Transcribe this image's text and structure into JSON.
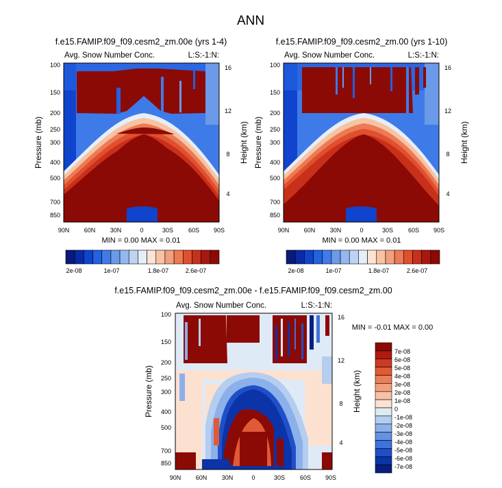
{
  "page_title": "ANN",
  "chart_data": [
    {
      "type": "heatmap",
      "title": "f.e15.FAMIP.f09_f09.cesm2_zm.00e (yrs 1-4)",
      "left_string": "Avg. Snow Number Conc.",
      "right_string": "L:S:-1:N:",
      "ylabel": "Pressure (mb)",
      "ylabel_right": "Height (km)",
      "x_tick_labels": [
        "90N",
        "60N",
        "30N",
        "0",
        "30S",
        "60S",
        "90S"
      ],
      "y_tick_labels": [
        "100",
        "150",
        "200",
        "250",
        "300",
        "400",
        "500",
        "700",
        "850"
      ],
      "y_right_tick_labels": [
        "16",
        "12",
        "8",
        "4"
      ],
      "min_max_text": "MIN =  0.00   MAX =  0.01",
      "colorbar_labels": [
        "2e-08",
        "1e-07",
        "1.8e-07",
        "2.6e-07"
      ],
      "colors": [
        "#0a1a7a",
        "#0a2ba6",
        "#1044cc",
        "#2460e0",
        "#3f7be8",
        "#6a9ae8",
        "#93b8ee",
        "#bcd4f3",
        "#e6eef8",
        "#fce3d3",
        "#f8c3a3",
        "#f2a07a",
        "#ec7a55",
        "#e0502f",
        "#c9301a",
        "#a7190e",
        "#8c0a05"
      ]
    },
    {
      "type": "heatmap",
      "title": "f.e15.FAMIP.f09_f09.cesm2_zm.00 (yrs 1-10)",
      "left_string": "Avg. Snow Number Conc.",
      "right_string": "L:S:-1:N:",
      "ylabel": "Pressure (mb)",
      "ylabel_right": "Height (km)",
      "x_tick_labels": [
        "90N",
        "60N",
        "30N",
        "0",
        "30S",
        "60S",
        "90S"
      ],
      "y_tick_labels": [
        "100",
        "150",
        "200",
        "250",
        "300",
        "400",
        "500",
        "700",
        "850"
      ],
      "y_right_tick_labels": [
        "16",
        "12",
        "8",
        "4"
      ],
      "min_max_text": "MIN =  0.00   MAX =  0.01",
      "colorbar_labels": [
        "2e-08",
        "1e-07",
        "1.8e-07",
        "2.6e-07"
      ]
    },
    {
      "type": "heatmap",
      "title": "f.e15.FAMIP.f09_f09.cesm2_zm.00e - f.e15.FAMIP.f09_f09.cesm2_zm.00",
      "left_string": "Avg. Snow Number Conc.",
      "right_string": "L:S:-1:N:",
      "ylabel": "Pressure (mb)",
      "ylabel_right": "Height (km)",
      "x_tick_labels": [
        "90N",
        "60N",
        "30N",
        "0",
        "30S",
        "60S",
        "90S"
      ],
      "y_tick_labels": [
        "100",
        "150",
        "200",
        "250",
        "300",
        "400",
        "500",
        "700",
        "850"
      ],
      "y_right_tick_labels": [
        "16",
        "12",
        "8",
        "4"
      ],
      "min_max_text": "MIN = -0.01   MAX =  0.00",
      "colorbar_labels": [
        "7e-08",
        "6e-08",
        "5e-08",
        "4e-08",
        "3e-08",
        "2e-08",
        "1e-08",
        "0",
        "-1e-08",
        "-2e-08",
        "-3e-08",
        "-4e-08",
        "-5e-08",
        "-6e-08",
        "-7e-08"
      ],
      "diff_colors": [
        "#8c0a05",
        "#b01a10",
        "#cc3a22",
        "#e05a38",
        "#ec7d55",
        "#f49f7c",
        "#f8c2a4",
        "#fce1d1",
        "#dfeaf7",
        "#b5cdef",
        "#8cb0ea",
        "#6592e2",
        "#3f72da",
        "#1f50c8",
        "#0c33a8",
        "#061f80"
      ]
    }
  ]
}
